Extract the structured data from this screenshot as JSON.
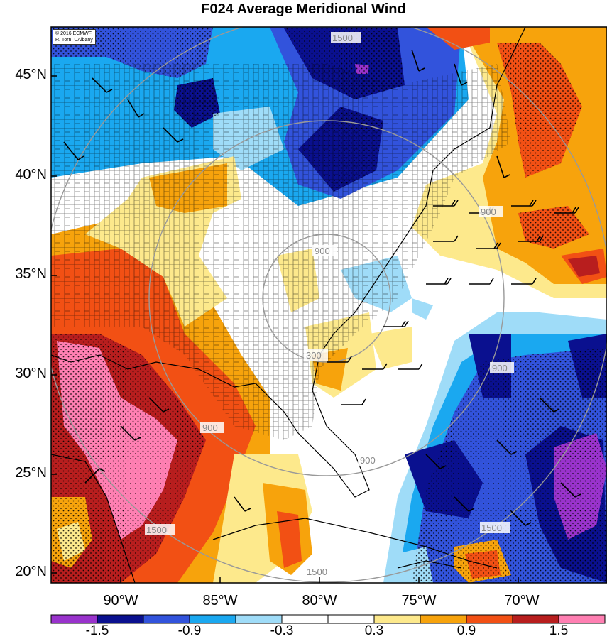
{
  "title": "F024 Average Meridional Wind",
  "credit": {
    "line1": "© 2016 ECMWF",
    "line2": "R. Torn, UAlbany"
  },
  "lat_labels": [
    "45°N",
    "40°N",
    "35°N",
    "30°N",
    "25°N",
    "20°N"
  ],
  "lon_labels": [
    "90°W",
    "85°W",
    "80°W",
    "75°W",
    "70°W"
  ],
  "contour_labels": [
    "1500",
    "900",
    "300",
    "900",
    "900",
    "900",
    "900",
    "1500",
    "1500",
    "1500"
  ],
  "colorbar": {
    "labels": [
      "-1.5",
      "-0.9",
      "-0.3",
      "0.3",
      "0.9",
      "1.5"
    ],
    "colors": [
      "#9933cc",
      "#0a108f",
      "#3253dc",
      "#1aa8f0",
      "#9fdcf8",
      "#ffffff",
      "#ffffff",
      "#fde98c",
      "#f7a30c",
      "#f25014",
      "#b81e1e",
      "#ff7fb2"
    ]
  },
  "palette": {
    "purple": "#9933cc",
    "dark_blue": "#0a108f",
    "blue": "#3253dc",
    "light_blue": "#1aa8f0",
    "pale_blue": "#9fdcf8",
    "white": "#ffffff",
    "pale_yellow": "#fde98c",
    "orange": "#f7a30c",
    "red_orange": "#f25014",
    "dark_red": "#b81e1e",
    "pink": "#ff7fb2"
  }
}
